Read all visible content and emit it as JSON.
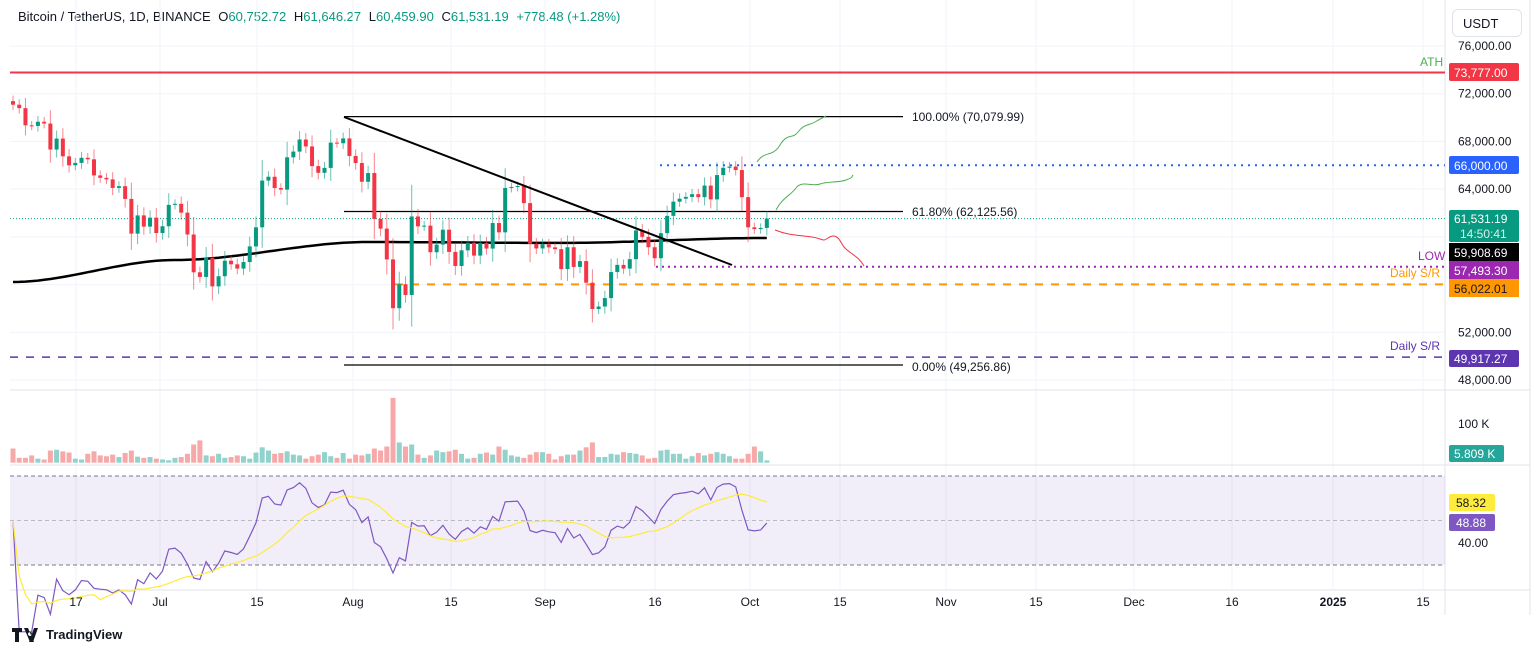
{
  "header": {
    "symbol": "Bitcoin / TetherUS, 1D, BINANCE",
    "open_label": "O",
    "open": "60,752.72",
    "high_label": "H",
    "high": "61,646.27",
    "low_label": "L",
    "low": "60,459.90",
    "close_label": "C",
    "close": "61,531.19",
    "change": "+778.48 (+1.28%)"
  },
  "currency_button": "USDT",
  "footer": {
    "brand": "TradingView"
  },
  "colors": {
    "up": "#089981",
    "down": "#f23645",
    "ath": "#f23645",
    "target": "#2962ff",
    "low": "#9c27b0",
    "support_orange": "#ff9800",
    "support_purple": "#5e35b1",
    "rsi": "#7e57c2",
    "rsi_ma": "#ffeb3b",
    "ma200": "#000000"
  },
  "annotations": {
    "ath_label": "ATH",
    "low_label": "LOW",
    "daily_sr_label_1": "Daily S/R",
    "daily_sr_label_2": "Daily S/R",
    "fib_100": "100.00% (70,079.99)",
    "fib_618": "61.80% (62,125.56)",
    "fib_0": "0.00% (49,256.86)"
  },
  "price_labels": {
    "ath": "73,777.00",
    "target": "66,000.00",
    "last": "61,531.19",
    "countdown": "14:50:41",
    "ma200": "59,908.69",
    "low": "57,493.30",
    "sr_orange": "56,022.01",
    "sr_purple": "49,917.27",
    "volume": "5.809 K",
    "rsi_ma": "58.32",
    "rsi": "48.88"
  },
  "chart_data": {
    "type": "candlestick",
    "start_date": "2024-06-05",
    "interval": "1D",
    "price_axis_ticks": [
      "76,000.00",
      "72,000.00",
      "68,000.00",
      "64,000.00",
      "52,000.00",
      "48,000.00"
    ],
    "volume_axis_ticks": [
      "100 K"
    ],
    "rsi_axis_ticks": [
      "40.00"
    ],
    "time_axis_ticks": [
      "17",
      "Jul",
      "15",
      "Aug",
      "15",
      "Sep",
      "16",
      "Oct",
      "15",
      "Nov",
      "15",
      "Dec",
      "16",
      "2025",
      "15"
    ],
    "ylim": [
      47000,
      77000
    ],
    "levels": {
      "ath": 73777,
      "target": 66000,
      "low": 57493.3,
      "sr_orange": 56022.01,
      "sr_purple": 49917.27,
      "fib_100": 70079.99,
      "fib_618": 62125.56,
      "fib_0": 49256.86,
      "last": 61531.19
    },
    "closes": [
      71080,
      70790,
      69350,
      69300,
      69650,
      69500,
      67320,
      68240,
      66750,
      66000,
      66200,
      66630,
      66500,
      65150,
      64950,
      64820,
      64100,
      64250,
      63180,
      60270,
      61800,
      60860,
      61610,
      60320,
      60890,
      62680,
      62770,
      62030,
      60200,
      57030,
      56640,
      58240,
      55850,
      56700,
      58000,
      57700,
      57340,
      57890,
      59200,
      60800,
      64720,
      65040,
      64090,
      63960,
      66670,
      67150,
      68160,
      67580,
      65930,
      65370,
      65780,
      67900,
      67850,
      68250,
      66780,
      66190,
      64620,
      65350,
      61500,
      60690,
      58110,
      54020,
      56030,
      55130,
      61710,
      60880,
      60940,
      58710,
      59350,
      60600,
      58740,
      57560,
      58870,
      59500,
      58430,
      59480,
      59020,
      61160,
      60380,
      64100,
      64180,
      64260,
      62830,
      59420,
      59030,
      59380,
      59120,
      58970,
      57300,
      59130,
      57480,
      57970,
      56160,
      53950,
      54160,
      54870,
      57050,
      57650,
      57340,
      58130,
      60540,
      60000,
      59130,
      58210,
      60310,
      61760,
      62950,
      63200,
      63350,
      63580,
      63330,
      64300,
      63140,
      65180,
      65790,
      65890,
      65600,
      63330,
      60800,
      60650,
      60750,
      61531.19
    ],
    "volumes_k": [
      35,
      12,
      12,
      18,
      10,
      8,
      30,
      32,
      28,
      25,
      10,
      8,
      22,
      28,
      18,
      16,
      20,
      14,
      24,
      30,
      15,
      12,
      14,
      10,
      8,
      6,
      12,
      14,
      22,
      45,
      55,
      18,
      16,
      22,
      12,
      14,
      18,
      16,
      10,
      25,
      38,
      30,
      22,
      24,
      28,
      20,
      18,
      10,
      16,
      20,
      26,
      16,
      12,
      24,
      10,
      20,
      18,
      22,
      35,
      30,
      40,
      160,
      50,
      40,
      45,
      20,
      12,
      18,
      30,
      26,
      28,
      32,
      22,
      10,
      12,
      22,
      25,
      20,
      40,
      32,
      18,
      15,
      12,
      20,
      26,
      26,
      22,
      8,
      16,
      20,
      20,
      30,
      38,
      50,
      14,
      14,
      22,
      20,
      26,
      24,
      22,
      18,
      10,
      12,
      30,
      32,
      22,
      22,
      10,
      16,
      24,
      18,
      22,
      26,
      22,
      16,
      10,
      10,
      22,
      40,
      28,
      5.809
    ],
    "ma200_anchors": [
      [
        "2024-06-05",
        56220
      ],
      [
        "2024-07-01",
        58060
      ],
      [
        "2024-08-01",
        59570
      ],
      [
        "2024-09-01",
        59490
      ],
      [
        "2024-10-04",
        59908.69
      ]
    ],
    "rsi_last": 48.88,
    "rsi_ma_last": 58.32,
    "rsi_bands": [
      30,
      50,
      70
    ]
  }
}
